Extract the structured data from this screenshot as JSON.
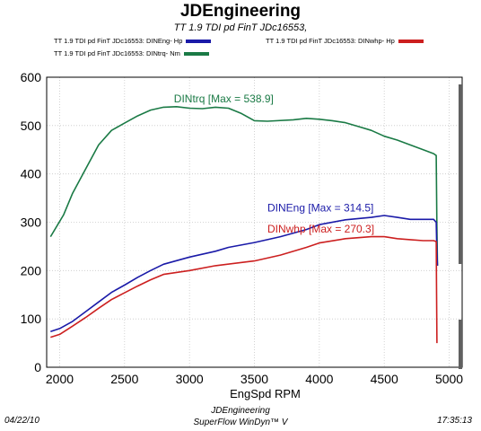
{
  "header": {
    "title": "JDEngineering",
    "subtitle": "TT 1.9 TDI pd  FinT    JDc16553,"
  },
  "legend": [
    {
      "label": "TT 1.9 TDI pd  FinT    JDc16553: DINEng- Hp",
      "color": "#1a1aa8"
    },
    {
      "label": "TT 1.9 TDI pd  FinT    JDc16553: DINwhp-  Hp",
      "color": "#cc1f1f"
    },
    {
      "label": "TT 1.9 TDI pd  FinT    JDc16553: DINtrq- Nm",
      "color": "#1a7a45"
    }
  ],
  "chart_data": {
    "type": "line",
    "xlabel": "EngSpd  RPM",
    "xlim": [
      1900,
      5100
    ],
    "ylim": [
      0,
      600
    ],
    "x_ticks": [
      2000,
      2500,
      3000,
      3500,
      4000,
      4500,
      5000
    ],
    "y_ticks": [
      0,
      100,
      200,
      300,
      400,
      500,
      600
    ],
    "grid": true,
    "series": [
      {
        "name": "DINtrq",
        "color": "#1a7a45",
        "points": [
          [
            1930,
            270
          ],
          [
            2030,
            315
          ],
          [
            2100,
            360
          ],
          [
            2200,
            410
          ],
          [
            2300,
            460
          ],
          [
            2400,
            490
          ],
          [
            2500,
            505
          ],
          [
            2600,
            520
          ],
          [
            2700,
            532
          ],
          [
            2800,
            538
          ],
          [
            2900,
            539
          ],
          [
            3000,
            536
          ],
          [
            3100,
            535
          ],
          [
            3200,
            538
          ],
          [
            3300,
            536
          ],
          [
            3400,
            525
          ],
          [
            3500,
            510
          ],
          [
            3600,
            509
          ],
          [
            3800,
            512
          ],
          [
            3900,
            515
          ],
          [
            4000,
            513
          ],
          [
            4100,
            510
          ],
          [
            4200,
            506
          ],
          [
            4300,
            498
          ],
          [
            4400,
            490
          ],
          [
            4500,
            478
          ],
          [
            4600,
            470
          ],
          [
            4700,
            460
          ],
          [
            4800,
            450
          ],
          [
            4880,
            442
          ],
          [
            4900,
            438
          ],
          [
            4905,
            300
          ],
          [
            4910,
            210
          ]
        ]
      },
      {
        "name": "DINEng",
        "color": "#1a1aa8",
        "points": [
          [
            1930,
            74
          ],
          [
            2000,
            80
          ],
          [
            2100,
            95
          ],
          [
            2200,
            115
          ],
          [
            2300,
            135
          ],
          [
            2400,
            155
          ],
          [
            2500,
            170
          ],
          [
            2600,
            186
          ],
          [
            2700,
            200
          ],
          [
            2800,
            213
          ],
          [
            3000,
            228
          ],
          [
            3200,
            240
          ],
          [
            3300,
            248
          ],
          [
            3500,
            258
          ],
          [
            3700,
            270
          ],
          [
            3900,
            285
          ],
          [
            4000,
            295
          ],
          [
            4200,
            305
          ],
          [
            4400,
            310
          ],
          [
            4500,
            314
          ],
          [
            4600,
            310
          ],
          [
            4700,
            306
          ],
          [
            4800,
            306
          ],
          [
            4880,
            306
          ],
          [
            4900,
            300
          ],
          [
            4905,
            240
          ],
          [
            4910,
            210
          ]
        ]
      },
      {
        "name": "DINwhp",
        "color": "#cc1f1f",
        "points": [
          [
            1930,
            62
          ],
          [
            2000,
            68
          ],
          [
            2100,
            85
          ],
          [
            2200,
            103
          ],
          [
            2300,
            122
          ],
          [
            2400,
            140
          ],
          [
            2500,
            154
          ],
          [
            2600,
            168
          ],
          [
            2700,
            181
          ],
          [
            2800,
            192
          ],
          [
            3000,
            200
          ],
          [
            3200,
            210
          ],
          [
            3500,
            220
          ],
          [
            3700,
            232
          ],
          [
            3900,
            248
          ],
          [
            4000,
            257
          ],
          [
            4200,
            266
          ],
          [
            4400,
            270
          ],
          [
            4500,
            270
          ],
          [
            4600,
            266
          ],
          [
            4700,
            264
          ],
          [
            4800,
            262
          ],
          [
            4880,
            262
          ],
          [
            4900,
            260
          ],
          [
            4903,
            150
          ],
          [
            4906,
            50
          ]
        ]
      }
    ],
    "annotations": [
      {
        "text": "DINtrq [Max = 538.9]",
        "series": "DINtrq",
        "x": 2880,
        "y": 548
      },
      {
        "text": "DINEng [Max = 314.5]",
        "series": "DINEng",
        "x": 3600,
        "y": 322
      },
      {
        "text": "DINwhp [Max = 270.3]",
        "series": "DINwhp",
        "x": 3600,
        "y": 279
      }
    ]
  },
  "footer": {
    "left": "04/22/10",
    "center_line1": "JDEngineering",
    "center_line2": "SuperFlow WinDyn™ V",
    "right": "17:35:13"
  }
}
